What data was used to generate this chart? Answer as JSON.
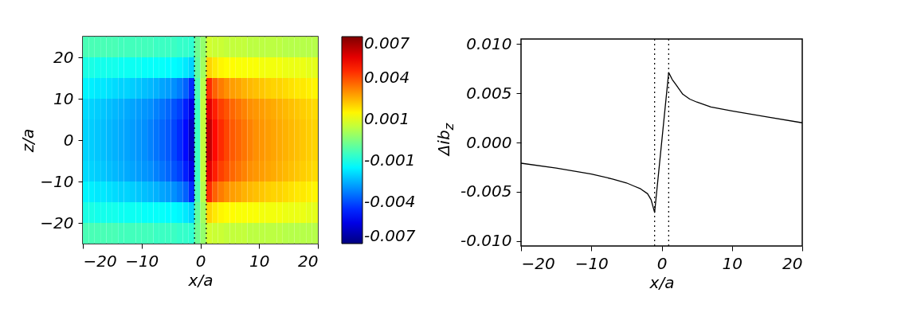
{
  "chart_data": [
    {
      "type": "heatmap",
      "xlabel": "x/a",
      "ylabel": "z/a",
      "xlim": [
        -20,
        20
      ],
      "xticks": [
        -20,
        -10,
        0,
        10,
        20
      ],
      "ylim": [
        -25,
        25
      ],
      "yticks": [
        -20,
        -10,
        0,
        10,
        20
      ],
      "x": [
        -19.5,
        -18.5,
        -17.5,
        -16.5,
        -15.5,
        -14.5,
        -13.5,
        -12.5,
        -11.5,
        -10.5,
        -9.5,
        -8.5,
        -7.5,
        -6.5,
        -5.5,
        -4.5,
        -3.5,
        -2.5,
        -1.5,
        -0.5,
        0.5,
        1.5,
        2.5,
        3.5,
        4.5,
        5.5,
        6.5,
        7.5,
        8.5,
        9.5,
        10.5,
        11.5,
        12.5,
        13.5,
        14.5,
        15.5,
        16.5,
        17.5,
        18.5,
        19.5
      ],
      "y": [
        22.5,
        17.5,
        12.5,
        7.5,
        2.5,
        -2.5,
        -7.5,
        -12.5,
        -17.5,
        -22.5
      ],
      "cells": [
        [
          -0.0008,
          -0.0008,
          -0.0008,
          -0.0008,
          -0.0008,
          -0.0008,
          -0.0009,
          -0.0009,
          -0.0009,
          -0.0009,
          -0.0009,
          -0.0009,
          -0.001,
          -0.001,
          -0.001,
          -0.001,
          -0.0011,
          -0.0011,
          -0.0012,
          -0.0003,
          0.0003,
          0.0012,
          0.0011,
          0.0011,
          0.001,
          0.001,
          0.001,
          0.001,
          0.0009,
          0.0009,
          0.0009,
          0.0009,
          0.0009,
          0.0009,
          0.0008,
          0.0008,
          0.0008,
          0.0008,
          0.0008,
          0.0008
        ],
        [
          -0.0015,
          -0.0015,
          -0.0016,
          -0.0016,
          -0.0016,
          -0.0016,
          -0.0017,
          -0.0017,
          -0.0017,
          -0.0017,
          -0.0018,
          -0.0018,
          -0.0018,
          -0.0018,
          -0.0019,
          -0.0019,
          -0.002,
          -0.0022,
          -0.0025,
          -0.0005,
          0.0005,
          0.0025,
          0.0022,
          0.002,
          0.0019,
          0.0019,
          0.0018,
          0.0018,
          0.0018,
          0.0018,
          0.0017,
          0.0017,
          0.0017,
          0.0017,
          0.0016,
          0.0016,
          0.0016,
          0.0016,
          0.0015,
          0.0015
        ],
        [
          -0.002,
          -0.0021,
          -0.0022,
          -0.0022,
          -0.0023,
          -0.0024,
          -0.0025,
          -0.0025,
          -0.0026,
          -0.0027,
          -0.0028,
          -0.0029,
          -0.003,
          -0.0032,
          -0.0033,
          -0.0035,
          -0.0038,
          -0.0042,
          -0.005,
          -0.0008,
          0.0008,
          0.005,
          0.0042,
          0.0038,
          0.0035,
          0.0033,
          0.0032,
          0.003,
          0.0029,
          0.0028,
          0.0027,
          0.0026,
          0.0025,
          0.0025,
          0.0024,
          0.0023,
          0.0022,
          0.0022,
          0.0021,
          0.002
        ],
        [
          -0.0024,
          -0.0025,
          -0.0026,
          -0.0027,
          -0.0028,
          -0.0029,
          -0.003,
          -0.0031,
          -0.0032,
          -0.0033,
          -0.0034,
          -0.0035,
          -0.0037,
          -0.0039,
          -0.0041,
          -0.0044,
          -0.0047,
          -0.0052,
          -0.006,
          -0.001,
          0.001,
          0.006,
          0.0052,
          0.0047,
          0.0044,
          0.0041,
          0.0039,
          0.0037,
          0.0035,
          0.0034,
          0.0033,
          0.0032,
          0.0031,
          0.003,
          0.0029,
          0.0028,
          0.0027,
          0.0026,
          0.0025,
          0.0024
        ],
        [
          -0.0025,
          -0.0026,
          -0.0027,
          -0.0028,
          -0.0029,
          -0.003,
          -0.0031,
          -0.0032,
          -0.0033,
          -0.0034,
          -0.0035,
          -0.0037,
          -0.0039,
          -0.0041,
          -0.0043,
          -0.0046,
          -0.005,
          -0.0055,
          -0.0065,
          -0.001,
          0.001,
          0.0065,
          0.0055,
          0.005,
          0.0046,
          0.0043,
          0.0041,
          0.0039,
          0.0037,
          0.0035,
          0.0034,
          0.0033,
          0.0032,
          0.0031,
          0.003,
          0.0029,
          0.0028,
          0.0027,
          0.0026,
          0.0025
        ],
        [
          -0.0025,
          -0.0026,
          -0.0027,
          -0.0028,
          -0.0029,
          -0.003,
          -0.0031,
          -0.0032,
          -0.0033,
          -0.0034,
          -0.0035,
          -0.0037,
          -0.0039,
          -0.0041,
          -0.0043,
          -0.0046,
          -0.005,
          -0.0055,
          -0.0065,
          -0.001,
          0.001,
          0.0065,
          0.0055,
          0.005,
          0.0046,
          0.0043,
          0.0041,
          0.0039,
          0.0037,
          0.0035,
          0.0034,
          0.0033,
          0.0032,
          0.0031,
          0.003,
          0.0029,
          0.0028,
          0.0027,
          0.0026,
          0.0025
        ],
        [
          -0.0024,
          -0.0025,
          -0.0026,
          -0.0027,
          -0.0028,
          -0.0029,
          -0.003,
          -0.0031,
          -0.0032,
          -0.0033,
          -0.0034,
          -0.0035,
          -0.0037,
          -0.0039,
          -0.0041,
          -0.0044,
          -0.0047,
          -0.0052,
          -0.006,
          -0.001,
          0.001,
          0.006,
          0.0052,
          0.0047,
          0.0044,
          0.0041,
          0.0039,
          0.0037,
          0.0035,
          0.0034,
          0.0033,
          0.0032,
          0.0031,
          0.003,
          0.0029,
          0.0028,
          0.0027,
          0.0026,
          0.0025,
          0.0024
        ],
        [
          -0.002,
          -0.0021,
          -0.0022,
          -0.0022,
          -0.0023,
          -0.0024,
          -0.0025,
          -0.0025,
          -0.0026,
          -0.0027,
          -0.0028,
          -0.0029,
          -0.003,
          -0.0032,
          -0.0033,
          -0.0035,
          -0.0038,
          -0.0042,
          -0.005,
          -0.0008,
          0.0008,
          0.005,
          0.0042,
          0.0038,
          0.0035,
          0.0033,
          0.0032,
          0.003,
          0.0029,
          0.0028,
          0.0027,
          0.0026,
          0.0025,
          0.0025,
          0.0024,
          0.0023,
          0.0022,
          0.0022,
          0.0021,
          0.002
        ],
        [
          -0.0015,
          -0.0015,
          -0.0016,
          -0.0016,
          -0.0016,
          -0.0016,
          -0.0017,
          -0.0017,
          -0.0017,
          -0.0017,
          -0.0018,
          -0.0018,
          -0.0018,
          -0.0018,
          -0.0019,
          -0.0019,
          -0.002,
          -0.0022,
          -0.0025,
          -0.0005,
          0.0005,
          0.0025,
          0.0022,
          0.002,
          0.0019,
          0.0019,
          0.0018,
          0.0018,
          0.0018,
          0.0018,
          0.0017,
          0.0017,
          0.0017,
          0.0017,
          0.0016,
          0.0016,
          0.0016,
          0.0016,
          0.0015,
          0.0015
        ],
        [
          -0.0008,
          -0.0008,
          -0.0008,
          -0.0008,
          -0.0008,
          -0.0008,
          -0.0009,
          -0.0009,
          -0.0009,
          -0.0009,
          -0.0009,
          -0.0009,
          -0.001,
          -0.001,
          -0.001,
          -0.001,
          -0.0011,
          -0.0011,
          -0.0012,
          -0.0003,
          0.0003,
          0.0012,
          0.0011,
          0.0011,
          0.001,
          0.001,
          0.001,
          0.001,
          0.0009,
          0.0009,
          0.0009,
          0.0009,
          0.0009,
          0.0009,
          0.0008,
          0.0008,
          0.0008,
          0.0008,
          0.0008,
          0.0008
        ]
      ],
      "clim": [
        -0.0075,
        0.0075
      ],
      "cticks": [
        {
          "value": 0.007,
          "label": "0.007"
        },
        {
          "value": 0.0045,
          "label": "0.004"
        },
        {
          "value": 0.0015,
          "label": "0.001"
        },
        {
          "value": -0.0015,
          "label": "-0.001"
        },
        {
          "value": -0.0045,
          "label": "-0.004"
        },
        {
          "value": -0.007,
          "label": "-0.007"
        }
      ],
      "ref_lines": [
        {
          "axis": "x",
          "value": -1,
          "line_style": "dotted"
        },
        {
          "axis": "x",
          "value": 1,
          "line_style": "dotted"
        }
      ]
    },
    {
      "type": "line",
      "xlabel": "x/a",
      "ylabel": "Δib$_{z}$",
      "xlim": [
        -20,
        20
      ],
      "xticks": [
        -20,
        -10,
        0,
        10,
        20
      ],
      "ylim": [
        -0.0105,
        0.0105
      ],
      "yticks": [
        {
          "value": -0.01,
          "label": "-0.010"
        },
        {
          "value": -0.005,
          "label": "-0.005"
        },
        {
          "value": 0,
          "label": "0.000"
        },
        {
          "value": 0.005,
          "label": "0.005"
        },
        {
          "value": 0.01,
          "label": "0.010"
        }
      ],
      "x": [
        -20,
        -15,
        -10,
        -7,
        -5,
        -4,
        -3,
        -2,
        -1.5,
        -1,
        1,
        1.5,
        2,
        3,
        4,
        5,
        7,
        10,
        15,
        20
      ],
      "series": [
        {
          "color": "#000000",
          "values": [
            -0.0021,
            -0.0026,
            -0.0032,
            -0.0037,
            -0.0041,
            -0.0044,
            -0.0047,
            -0.0052,
            -0.0058,
            -0.0071,
            0.0071,
            0.0064,
            0.0059,
            0.0049,
            0.0044,
            0.0041,
            0.0036,
            0.0032,
            0.0026,
            0.002
          ]
        }
      ],
      "ref_lines": [
        {
          "axis": "x",
          "value": -1,
          "line_style": "dotted"
        },
        {
          "axis": "x",
          "value": 1,
          "line_style": "dotted"
        }
      ]
    }
  ]
}
